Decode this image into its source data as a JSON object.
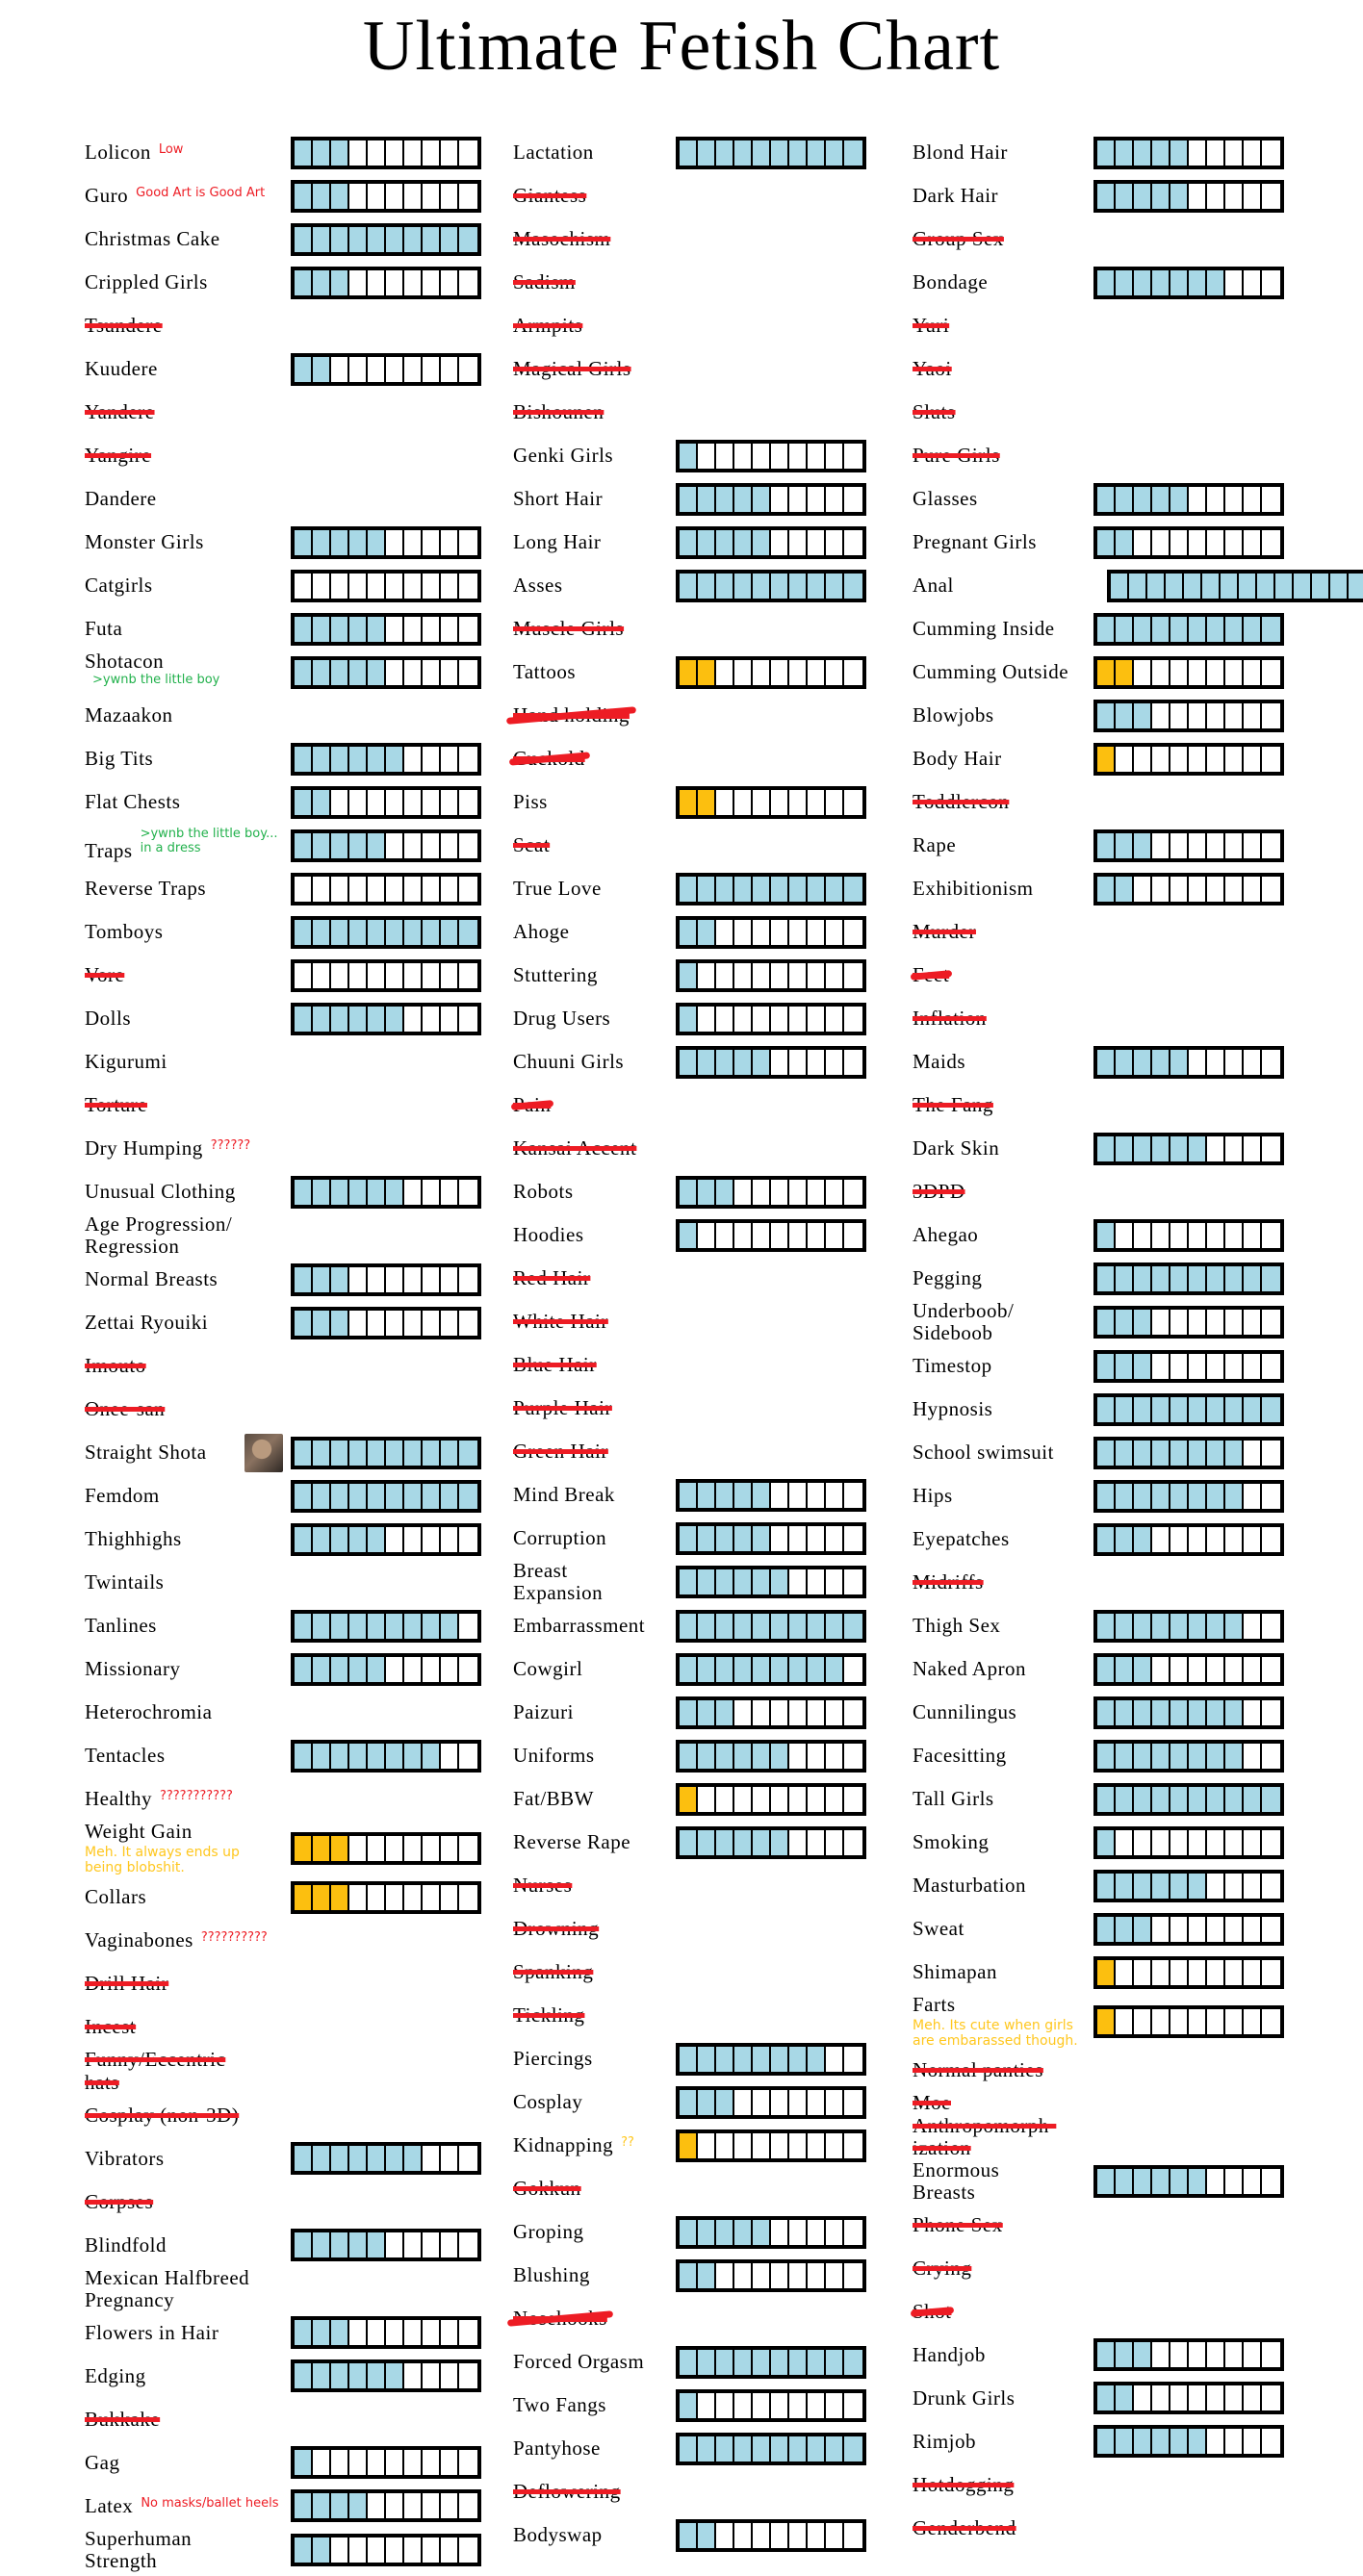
{
  "colors": {
    "blue": "#A8D8E6",
    "orange": "#FCBF0F",
    "red": "#ED1C24",
    "green": "#22B14C",
    "yellow": "#FFC71F",
    "black": "#000000",
    "background": "#FFFFFF"
  },
  "chart_data": {
    "type": "bar",
    "title": "Ultimate Fetish Chart",
    "scale_min": 0,
    "scale_max": 10,
    "legend": "each bar = 10 segments, filled segments = rating; blue = liked, orange = disliked/guilty, struck-through label = rejected",
    "columns": [
      {
        "items": [
          {
            "label": "Lolicon",
            "value": 3,
            "note": {
              "text": "Low",
              "color": "red",
              "position": "inline"
            }
          },
          {
            "label": "Guro",
            "value": 3,
            "note": {
              "text": "Good Art is Good Art",
              "color": "red",
              "position": "inline"
            }
          },
          {
            "label": "Christmas Cake",
            "value": 10
          },
          {
            "label": "Crippled Girls",
            "value": 3
          },
          {
            "label": "Tsundere",
            "struck": true
          },
          {
            "label": "Kuudere",
            "value": 2
          },
          {
            "label": "Yandere",
            "struck": true
          },
          {
            "label": "Yangire",
            "struck": true
          },
          {
            "label": "Dandere"
          },
          {
            "label": "Monster Girls",
            "value": 5
          },
          {
            "label": "Catgirls",
            "value": 0
          },
          {
            "label": "Futa",
            "value": 5
          },
          {
            "label": "Shotacon",
            "value": 5,
            "note": {
              "text": ">ywnb the little boy",
              "color": "green",
              "position": "inline"
            }
          },
          {
            "label": "Mazaakon"
          },
          {
            "label": "Big Tits",
            "value": 6
          },
          {
            "label": "Flat Chests",
            "value": 2
          },
          {
            "label": "Traps",
            "value": 5,
            "note": {
              "text": ">ywnb the little boy... in a dress",
              "color": "green",
              "position": "inline"
            }
          },
          {
            "label": "Reverse Traps",
            "value": 0
          },
          {
            "label": "Tomboys",
            "value": 10
          },
          {
            "label": "Vore",
            "value": 0,
            "struck": true
          },
          {
            "label": "Dolls",
            "value": 6
          },
          {
            "label": "Kigurumi"
          },
          {
            "label": "Torture",
            "struck": true
          },
          {
            "label": "Dry Humping",
            "note": {
              "text": "??????",
              "color": "red",
              "position": "inline"
            }
          },
          {
            "label": "Unusual Clothing",
            "value": 6
          },
          {
            "label": "Age Progression/\nRegression"
          },
          {
            "label": "Normal Breasts",
            "value": 3
          },
          {
            "label": "Zettai Ryouiki",
            "value": 3
          },
          {
            "label": "Imouto",
            "struck": true
          },
          {
            "label": "Onee-san",
            "struck": true
          },
          {
            "label": "Straight Shota",
            "value": 10,
            "photo": true
          },
          {
            "label": "Femdom",
            "value": 10
          },
          {
            "label": "Thighhighs",
            "value": 5
          },
          {
            "label": "Twintails"
          },
          {
            "label": "Tanlines",
            "value": 9
          },
          {
            "label": "Missionary",
            "value": 5
          },
          {
            "label": "Heterochromia"
          },
          {
            "label": "Tentacles",
            "value": 8
          },
          {
            "label": "Healthy",
            "note": {
              "text": "???????????",
              "color": "red",
              "position": "inline"
            }
          },
          {
            "label": "Weight Gain",
            "value": 3,
            "fill": "orange",
            "note": {
              "text": "Meh. It always ends up being blobshit.",
              "color": "yellow",
              "position": "below"
            }
          },
          {
            "label": "Collars",
            "value": 3,
            "fill": "orange"
          },
          {
            "label": "Vaginabones",
            "note": {
              "text": "??????????",
              "color": "red",
              "position": "inline"
            }
          },
          {
            "label": "Drill Hair",
            "struck": true
          },
          {
            "label": "Incest",
            "struck": true
          },
          {
            "label": "Funny/Eccentric\nhats",
            "struck": true
          },
          {
            "label": "Cosplay (non-3D)",
            "struck": true
          },
          {
            "label": "Vibrators",
            "value": 7
          },
          {
            "label": "Corpses",
            "struck": true
          },
          {
            "label": "Blindfold",
            "value": 5
          },
          {
            "label": "Mexican Halfbreed\nPregnancy"
          },
          {
            "label": "Flowers in Hair",
            "value": 3
          },
          {
            "label": "Edging",
            "value": 6
          },
          {
            "label": "Bukkake",
            "struck": true
          },
          {
            "label": "Gag",
            "value": 1
          },
          {
            "label": "Latex",
            "value": 4,
            "note": {
              "text": "No masks/ballet heels",
              "color": "red",
              "position": "inline"
            }
          },
          {
            "label": "Superhuman\nStrength",
            "value": 2
          }
        ]
      },
      {
        "items": [
          {
            "label": "Lactation",
            "value": 10
          },
          {
            "label": "Giantess",
            "struck": true
          },
          {
            "label": "Masochism",
            "struck": true
          },
          {
            "label": "Sadism",
            "struck": true
          },
          {
            "label": "Armpits",
            "struck": true
          },
          {
            "label": "Magical Girls",
            "struck": true
          },
          {
            "label": "Bishounen",
            "struck": true
          },
          {
            "label": "Genki Girls",
            "value": 1
          },
          {
            "label": "Short Hair",
            "value": 5
          },
          {
            "label": "Long Hair",
            "value": 5
          },
          {
            "label": "Asses",
            "value": 10
          },
          {
            "label": "Muscle Girls",
            "struck": true
          },
          {
            "label": "Tattoos",
            "value": 2,
            "fill": "orange"
          },
          {
            "label": "Hand holding",
            "struck": true,
            "heavy": true
          },
          {
            "label": "Cuckold",
            "struck": true,
            "heavy": true
          },
          {
            "label": "Piss",
            "value": 2,
            "fill": "orange"
          },
          {
            "label": "Scat",
            "struck": true
          },
          {
            "label": "True Love",
            "value": 10
          },
          {
            "label": "Ahoge",
            "value": 2
          },
          {
            "label": "Stuttering",
            "value": 1
          },
          {
            "label": "Drug Users",
            "value": 1
          },
          {
            "label": "Chuuni Girls",
            "value": 5
          },
          {
            "label": "Pain",
            "struck": true,
            "heavy": true
          },
          {
            "label": "Kansai Accent",
            "struck": true
          },
          {
            "label": "Robots",
            "value": 3
          },
          {
            "label": "Hoodies",
            "value": 1
          },
          {
            "label": "Red Hair",
            "struck": true
          },
          {
            "label": "White Hair",
            "struck": true
          },
          {
            "label": "Blue Hair",
            "struck": true
          },
          {
            "label": "Purple Hair",
            "struck": true
          },
          {
            "label": "Green Hair",
            "struck": true
          },
          {
            "label": "Mind Break",
            "value": 5
          },
          {
            "label": "Corruption",
            "value": 5
          },
          {
            "label": "Breast\nExpansion",
            "value": 6
          },
          {
            "label": "Embarrassment",
            "value": 10
          },
          {
            "label": "Cowgirl",
            "value": 9
          },
          {
            "label": "Paizuri",
            "value": 3
          },
          {
            "label": "Uniforms",
            "value": 6
          },
          {
            "label": "Fat/BBW",
            "value": 1,
            "fill": "orange"
          },
          {
            "label": "Reverse Rape",
            "value": 6
          },
          {
            "label": "Nurses",
            "struck": true
          },
          {
            "label": "Drowning",
            "struck": true
          },
          {
            "label": "Spanking",
            "struck": true
          },
          {
            "label": "Tickling",
            "struck": true
          },
          {
            "label": "Piercings",
            "value": 8
          },
          {
            "label": "Cosplay",
            "value": 3
          },
          {
            "label": "Kidnapping",
            "value": 1,
            "fill": "orange",
            "note": {
              "text": "??",
              "color": "yellow",
              "position": "inline"
            }
          },
          {
            "label": "Gokkun",
            "struck": true
          },
          {
            "label": "Groping",
            "value": 5
          },
          {
            "label": "Blushing",
            "value": 2
          },
          {
            "label": "Nosehooks",
            "struck": true,
            "heavy": true
          },
          {
            "label": "Forced Orgasm",
            "value": 10
          },
          {
            "label": "Two Fangs",
            "value": 1
          },
          {
            "label": "Pantyhose",
            "value": 10
          },
          {
            "label": "Deflowering",
            "struck": true
          },
          {
            "label": "Bodyswap",
            "value": 2
          }
        ]
      },
      {
        "items": [
          {
            "label": "Blond Hair",
            "value": 5
          },
          {
            "label": "Dark Hair",
            "value": 5
          },
          {
            "label": "Group Sex",
            "struck": true
          },
          {
            "label": "Bondage",
            "value": 7
          },
          {
            "label": "Yuri",
            "struck": true
          },
          {
            "label": "Yaoi",
            "struck": true
          },
          {
            "label": "Sluts",
            "struck": true
          },
          {
            "label": "Pure Girls",
            "struck": true
          },
          {
            "label": "Glasses",
            "value": 5
          },
          {
            "label": "Pregnant Girls",
            "value": 2
          },
          {
            "label": "Anal",
            "value": 14,
            "cells": 14,
            "extended": true
          },
          {
            "label": "Cumming Inside",
            "value": 10
          },
          {
            "label": "Cumming Outside",
            "value": 2,
            "fill": "orange"
          },
          {
            "label": "Blowjobs",
            "value": 3
          },
          {
            "label": "Body Hair",
            "value": 1,
            "fill": "orange"
          },
          {
            "label": "Toddlercon",
            "struck": true
          },
          {
            "label": "Rape",
            "value": 3
          },
          {
            "label": "Exhibitionism",
            "value": 2
          },
          {
            "label": "Murder",
            "struck": true
          },
          {
            "label": "Feet",
            "struck": true,
            "heavy": true
          },
          {
            "label": "Inflation",
            "struck": true
          },
          {
            "label": "Maids",
            "value": 5
          },
          {
            "label": "The Fang",
            "struck": true
          },
          {
            "label": "Dark Skin",
            "value": 6
          },
          {
            "label": "3DPD",
            "struck": true
          },
          {
            "label": "Ahegao",
            "value": 1
          },
          {
            "label": "Pegging",
            "value": 10
          },
          {
            "label": "Underboob/\nSideboob",
            "value": 3
          },
          {
            "label": "Timestop",
            "value": 3
          },
          {
            "label": "Hypnosis",
            "value": 10
          },
          {
            "label": "School swimsuit",
            "value": 8
          },
          {
            "label": "Hips",
            "value": 8
          },
          {
            "label": "Eyepatches",
            "value": 3
          },
          {
            "label": "Midriffs",
            "struck": true
          },
          {
            "label": "Thigh Sex",
            "value": 8
          },
          {
            "label": "Naked Apron",
            "value": 3
          },
          {
            "label": "Cunnilingus",
            "value": 8
          },
          {
            "label": "Facesitting",
            "value": 8
          },
          {
            "label": "Tall Girls",
            "value": 10
          },
          {
            "label": "Smoking",
            "value": 1
          },
          {
            "label": "Masturbation",
            "value": 6
          },
          {
            "label": "Sweat",
            "value": 3
          },
          {
            "label": "Shimapan",
            "value": 1,
            "fill": "orange"
          },
          {
            "label": "Farts",
            "value": 1,
            "fill": "orange",
            "note": {
              "text": "Meh. Its cute when girls are embarassed though.",
              "color": "yellow",
              "position": "below"
            }
          },
          {
            "label": "Normal panties",
            "struck": true
          },
          {
            "label": "Moe\nAnthropomorph-\nization",
            "struck": true
          },
          {
            "label": "Enormous\nBreasts",
            "value": 6
          },
          {
            "label": "Phone Sex",
            "struck": true
          },
          {
            "label": "Crying",
            "struck": true
          },
          {
            "label": "Shot",
            "struck": true,
            "heavy": true
          },
          {
            "label": "Handjob",
            "value": 3
          },
          {
            "label": "Drunk Girls",
            "value": 2
          },
          {
            "label": "Rimjob",
            "value": 6
          },
          {
            "label": "Hotdogging",
            "struck": true
          },
          {
            "label": "Genderbend",
            "struck": true
          }
        ]
      }
    ]
  }
}
